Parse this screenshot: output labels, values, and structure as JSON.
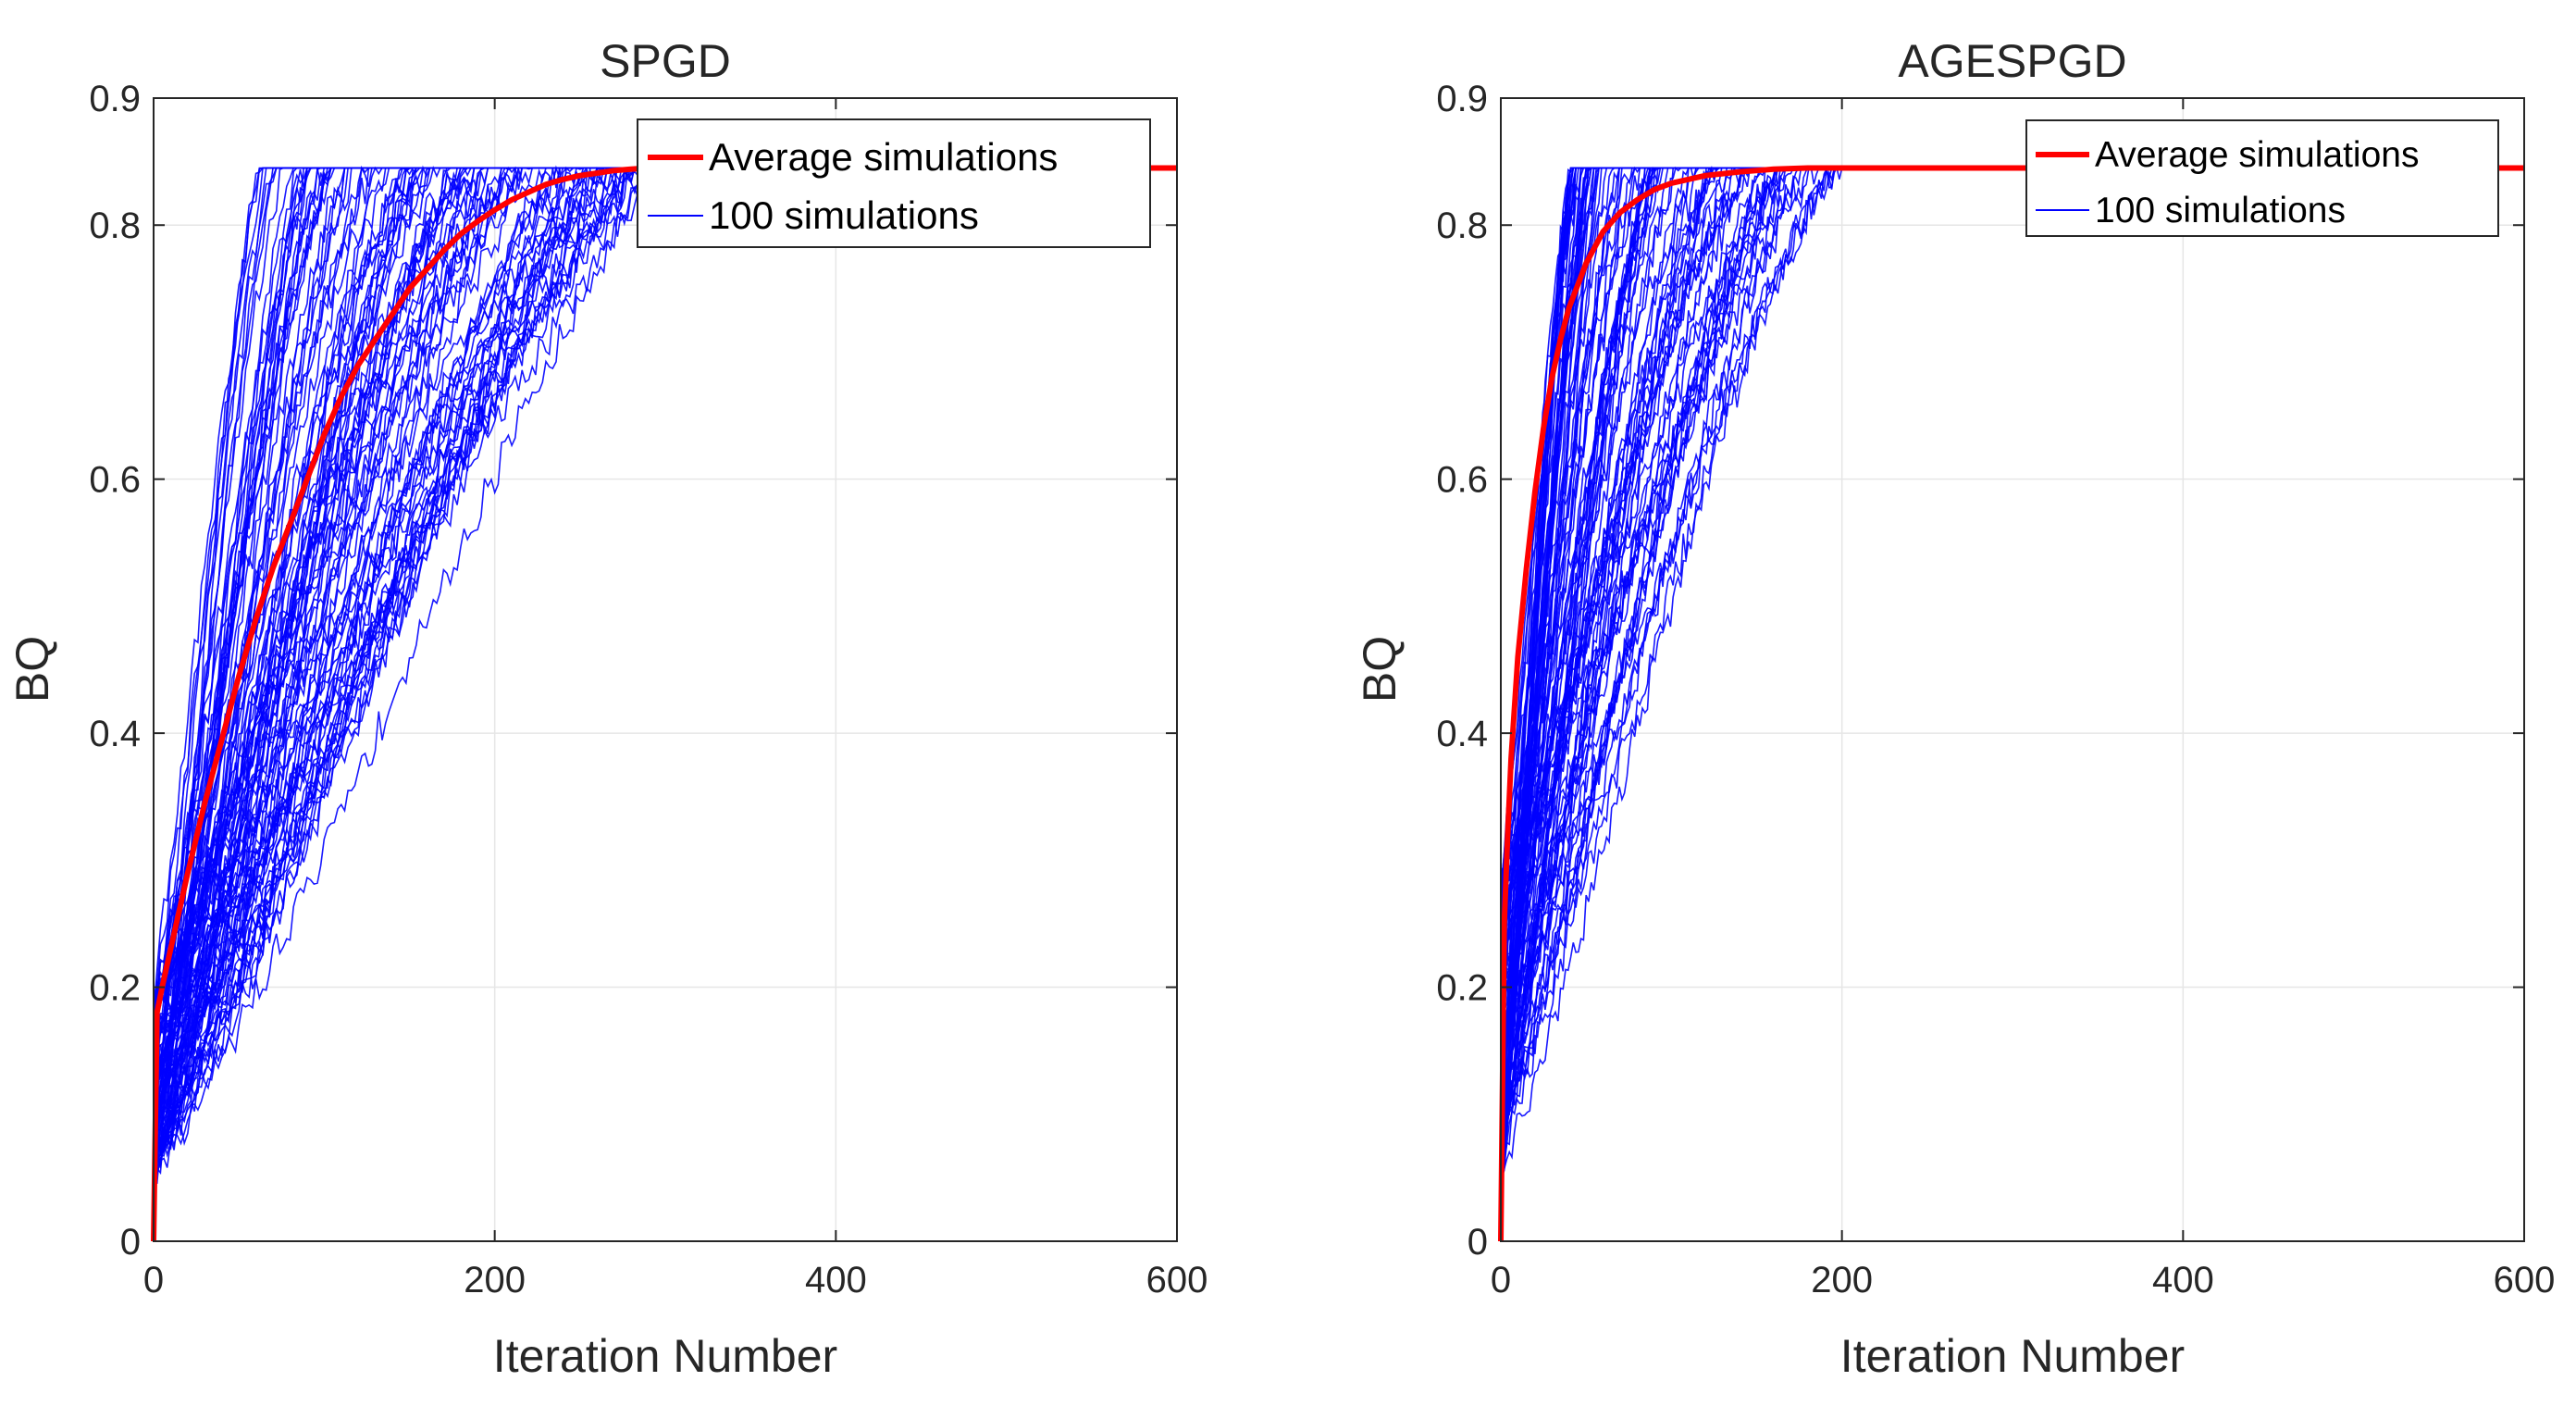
{
  "chart_data": [
    {
      "type": "line",
      "title": "SPGD",
      "xlabel": "Iteration Number",
      "ylabel": "BQ",
      "xlim": [
        0,
        600
      ],
      "ylim": [
        0,
        0.9
      ],
      "xticks": [
        0,
        200,
        400,
        600
      ],
      "yticks": [
        0,
        0.2,
        0.4,
        0.6,
        0.8,
        0.9
      ],
      "grid": true,
      "legend": {
        "position": "top-right",
        "entries": [
          "Average simulations",
          "100 simulations"
        ]
      },
      "series": [
        {
          "name": "Average simulations",
          "color": "#ff0000",
          "x": [
            0,
            2,
            5,
            10,
            20,
            30,
            40,
            50,
            60,
            70,
            80,
            90,
            100,
            110,
            120,
            130,
            140,
            150,
            160,
            170,
            180,
            190,
            200,
            210,
            220,
            230,
            240,
            250,
            260,
            270,
            280,
            290,
            300,
            350,
            400,
            450,
            500,
            550,
            600
          ],
          "y": [
            0,
            0.18,
            0.2,
            0.23,
            0.29,
            0.345,
            0.395,
            0.445,
            0.49,
            0.53,
            0.565,
            0.6,
            0.635,
            0.665,
            0.69,
            0.71,
            0.73,
            0.75,
            0.765,
            0.78,
            0.793,
            0.803,
            0.812,
            0.82,
            0.826,
            0.832,
            0.836,
            0.839,
            0.841,
            0.843,
            0.844,
            0.845,
            0.845,
            0.845,
            0.845,
            0.845,
            0.845,
            0.845,
            0.845
          ]
        },
        {
          "name": "100 simulations",
          "color": "#0000ff",
          "count": 100,
          "start_range": [
            0.05,
            0.2
          ],
          "plateau": 0.845,
          "converge_range": [
            60,
            300
          ]
        }
      ]
    },
    {
      "type": "line",
      "title": "AGESPGD",
      "xlabel": "Iteration Number",
      "ylabel": "BQ",
      "xlim": [
        0,
        600
      ],
      "ylim": [
        0,
        0.9
      ],
      "xticks": [
        0,
        200,
        400,
        600
      ],
      "yticks": [
        0,
        0.2,
        0.4,
        0.6,
        0.8,
        0.9
      ],
      "grid": true,
      "legend": {
        "position": "top-right",
        "entries": [
          "Average simulations",
          "100 simulations"
        ]
      },
      "series": [
        {
          "name": "Average simulations",
          "color": "#ff0000",
          "x": [
            0,
            2,
            4,
            6,
            10,
            15,
            20,
            25,
            30,
            35,
            40,
            50,
            60,
            70,
            80,
            90,
            100,
            120,
            140,
            160,
            180,
            200,
            250,
            300,
            400,
            500,
            600
          ],
          "y": [
            0,
            0.25,
            0.32,
            0.38,
            0.46,
            0.53,
            0.59,
            0.64,
            0.68,
            0.71,
            0.735,
            0.77,
            0.795,
            0.81,
            0.82,
            0.828,
            0.833,
            0.839,
            0.842,
            0.844,
            0.845,
            0.845,
            0.845,
            0.845,
            0.845,
            0.845,
            0.845
          ]
        },
        {
          "name": "100 simulations",
          "color": "#0000ff",
          "count": 100,
          "start_range": [
            0.05,
            0.3
          ],
          "plateau": 0.845,
          "converge_range": [
            40,
            200
          ]
        }
      ]
    }
  ]
}
